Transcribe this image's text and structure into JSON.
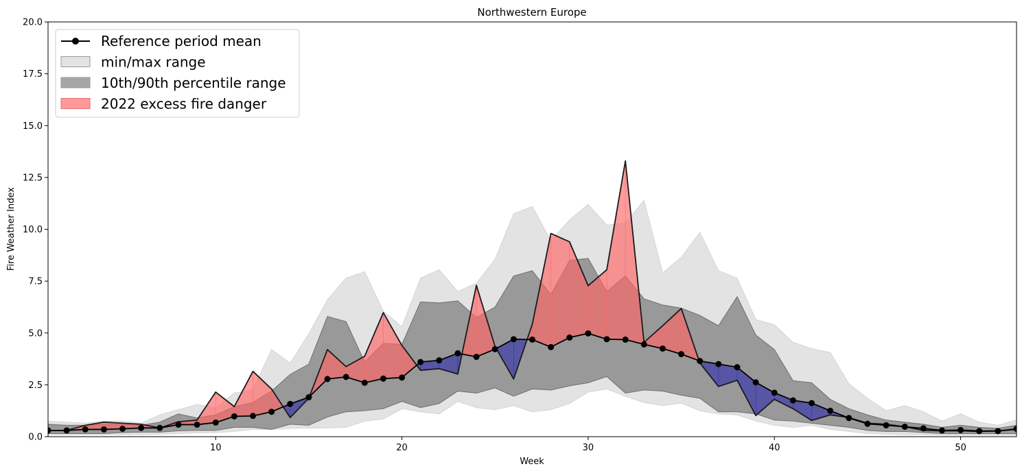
{
  "chart_data": {
    "type": "area",
    "title": "Northwestern Europe",
    "xlabel": "Week",
    "ylabel": "Fire Weather Index",
    "xlim": [
      1,
      53
    ],
    "ylim": [
      0,
      20
    ],
    "x_ticks": [
      10,
      20,
      30,
      40,
      50
    ],
    "y_ticks": [
      0.0,
      2.5,
      5.0,
      7.5,
      10.0,
      12.5,
      15.0,
      17.5,
      20.0
    ],
    "x_tick_labels": [
      "10",
      "20",
      "30",
      "40",
      "50"
    ],
    "y_tick_labels": [
      "0.0",
      "2.5",
      "5.0",
      "7.5",
      "10.0",
      "12.5",
      "15.0",
      "17.5",
      "20.0"
    ],
    "grid": false,
    "legend_position": "top-left",
    "weeks": [
      1,
      2,
      3,
      4,
      5,
      6,
      7,
      8,
      9,
      10,
      11,
      12,
      13,
      14,
      15,
      16,
      17,
      18,
      19,
      20,
      21,
      22,
      23,
      24,
      25,
      26,
      27,
      28,
      29,
      30,
      31,
      32,
      33,
      34,
      35,
      36,
      37,
      38,
      39,
      40,
      41,
      42,
      43,
      44,
      45,
      46,
      47,
      48,
      49,
      50,
      51,
      52,
      53
    ],
    "series": [
      {
        "name": "Reference period mean",
        "role": "mean",
        "color": "#000000",
        "values": [
          0.3,
          0.3,
          0.35,
          0.35,
          0.38,
          0.42,
          0.42,
          0.58,
          0.58,
          0.68,
          0.98,
          1.0,
          1.2,
          1.58,
          1.9,
          2.78,
          2.88,
          2.6,
          2.8,
          2.85,
          3.6,
          3.68,
          4.02,
          3.85,
          4.22,
          4.7,
          4.68,
          4.32,
          4.78,
          4.98,
          4.7,
          4.68,
          4.45,
          4.25,
          3.98,
          3.65,
          3.5,
          3.35,
          2.62,
          2.12,
          1.75,
          1.62,
          1.25,
          0.9,
          0.62,
          0.55,
          0.48,
          0.4,
          0.3,
          0.32,
          0.27,
          0.27,
          0.38
        ]
      },
      {
        "name": "min/max range",
        "role": "minmax",
        "color": "#e3e3e3",
        "lower": [
          0.1,
          0.1,
          0.1,
          0.1,
          0.1,
          0.1,
          0.12,
          0.15,
          0.18,
          0.2,
          0.25,
          0.35,
          0.35,
          0.4,
          0.42,
          0.42,
          0.45,
          0.75,
          0.85,
          1.35,
          1.2,
          1.1,
          1.7,
          1.4,
          1.3,
          1.5,
          1.2,
          1.3,
          1.6,
          2.15,
          2.3,
          1.95,
          1.65,
          1.5,
          1.62,
          1.25,
          1.1,
          1.05,
          0.75,
          0.55,
          0.45,
          0.55,
          0.35,
          0.25,
          0.15,
          0.12,
          0.1,
          0.1,
          0.08,
          0.08,
          0.08,
          0.08,
          0.08
        ],
        "upper": [
          0.75,
          0.7,
          0.65,
          0.75,
          0.75,
          0.65,
          1.05,
          1.3,
          1.55,
          1.4,
          2.1,
          2.25,
          4.2,
          3.55,
          4.95,
          6.6,
          7.65,
          7.95,
          6.05,
          5.3,
          7.65,
          8.05,
          7.0,
          7.4,
          8.55,
          10.75,
          11.1,
          9.45,
          10.45,
          11.2,
          10.2,
          10.3,
          11.4,
          7.9,
          8.65,
          9.85,
          8.0,
          7.65,
          5.65,
          5.4,
          4.55,
          4.25,
          4.05,
          2.55,
          1.85,
          1.25,
          1.5,
          1.2,
          0.75,
          1.1,
          0.7,
          0.55,
          0.8
        ]
      },
      {
        "name": "10th/90th percentile range",
        "role": "percentile",
        "color": "#808080",
        "lower": [
          0.15,
          0.15,
          0.15,
          0.15,
          0.2,
          0.22,
          0.22,
          0.28,
          0.3,
          0.3,
          0.45,
          0.45,
          0.35,
          0.6,
          0.55,
          0.95,
          1.2,
          1.25,
          1.35,
          1.7,
          1.4,
          1.6,
          2.2,
          2.1,
          2.35,
          1.95,
          2.3,
          2.25,
          2.45,
          2.6,
          2.9,
          2.1,
          2.25,
          2.2,
          2.0,
          1.85,
          1.2,
          1.2,
          1.1,
          0.8,
          0.75,
          0.65,
          0.55,
          0.45,
          0.3,
          0.25,
          0.25,
          0.2,
          0.15,
          0.15,
          0.15,
          0.15,
          0.15
        ],
        "upper": [
          0.6,
          0.55,
          0.55,
          0.6,
          0.6,
          0.55,
          0.7,
          1.1,
          0.9,
          1.05,
          1.45,
          1.65,
          2.2,
          3.0,
          3.5,
          5.8,
          5.55,
          3.6,
          4.5,
          4.45,
          6.5,
          6.45,
          6.55,
          5.75,
          6.25,
          7.75,
          8.0,
          6.85,
          8.5,
          8.6,
          7.0,
          7.75,
          6.65,
          6.35,
          6.2,
          5.85,
          5.35,
          6.75,
          4.9,
          4.2,
          2.7,
          2.6,
          1.8,
          1.35,
          1.05,
          0.8,
          0.7,
          0.6,
          0.45,
          0.55,
          0.45,
          0.4,
          0.55
        ]
      },
      {
        "name": "2022",
        "role": "year",
        "color": "#1a1a1a",
        "values": [
          0.3,
          0.3,
          0.55,
          0.7,
          0.65,
          0.6,
          0.42,
          0.72,
          0.8,
          2.15,
          1.45,
          3.15,
          2.3,
          0.92,
          1.85,
          4.2,
          3.38,
          3.88,
          5.98,
          4.4,
          3.2,
          3.28,
          3.02,
          7.3,
          4.35,
          2.78,
          5.42,
          9.8,
          9.4,
          7.28,
          8.05,
          13.3,
          4.55,
          5.35,
          6.18,
          3.55,
          2.42,
          2.72,
          1.02,
          1.8,
          1.35,
          0.78,
          1.05,
          0.92,
          0.65,
          0.6,
          0.48,
          0.3,
          0.28,
          0.28,
          0.25,
          0.28,
          0.35
        ]
      }
    ],
    "excess_label": "2022 excess fire danger",
    "excess_color": "#ff6666",
    "deficit_color": "#3333aa",
    "legend": [
      {
        "label": "Reference period mean",
        "kind": "line-marker",
        "color": "#000000"
      },
      {
        "label": "min/max range",
        "kind": "patch",
        "color": "#e3e3e3"
      },
      {
        "label": "10th/90th percentile range",
        "kind": "patch",
        "color": "#a6a6a6"
      },
      {
        "label": "2022 excess fire danger",
        "kind": "patch",
        "color": "#ff9999"
      }
    ]
  }
}
